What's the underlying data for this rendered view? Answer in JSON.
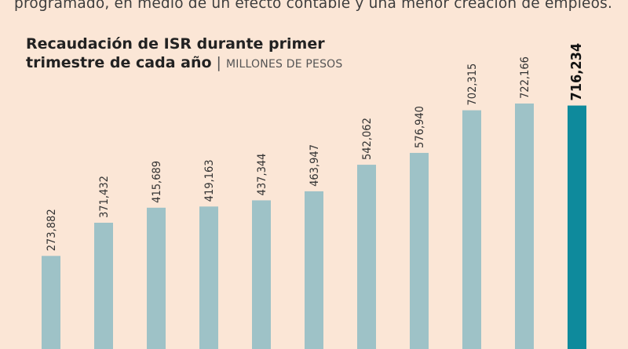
{
  "intro_text": "programado, en medio de un efecto contable y una menor creación de empleos.",
  "title_line1": "Recaudación de ISR durante primer",
  "title_line2": "trimestre de cada año",
  "units": "MILLONES DE PESOS",
  "colors": {
    "background": "#fbe6d6",
    "bar": "#9ec2c7",
    "bar_highlight": "#0e8a9c",
    "label": "#333333"
  },
  "chart_data": {
    "type": "bar",
    "title": "Recaudación de ISR durante primer trimestre de cada año",
    "ylabel": "MILLONES DE PESOS",
    "values": [
      273882,
      371432,
      415689,
      419163,
      437344,
      463947,
      542062,
      576940,
      702315,
      722166,
      716234
    ],
    "value_labels": [
      "273,882",
      "371,432",
      "415,689",
      "419,163",
      "437,344",
      "463,947",
      "542,062",
      "576,940",
      "702,315",
      "722,166",
      "716,234"
    ],
    "highlight_index": 10,
    "ylim": [
      0,
      722166
    ],
    "grid": false,
    "legend": "none"
  }
}
